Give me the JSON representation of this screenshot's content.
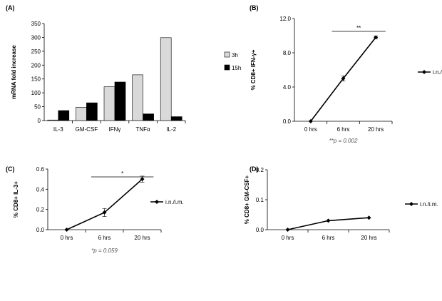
{
  "chart_data": [
    {
      "id": "A",
      "panel_label": "(A)",
      "type": "bar",
      "ylabel": "mRNA fold increase",
      "ylim": [
        0,
        350
      ],
      "yticks": [
        "0",
        "50",
        "100",
        "150",
        "200",
        "250",
        "300",
        "350"
      ],
      "categories": [
        "IL-3",
        "GM-CSF",
        "IFNγ",
        "TNFα",
        "IL-2"
      ],
      "series": [
        {
          "name": "3h",
          "color": "#d9d9d9",
          "values": [
            2,
            48,
            122,
            165,
            299
          ]
        },
        {
          "name": "15h",
          "color": "#000000",
          "values": [
            36,
            64,
            139,
            24,
            14
          ]
        }
      ],
      "legend": "right"
    },
    {
      "id": "B",
      "panel_label": "(B)",
      "type": "line",
      "ylabel": "% CD8+ IFN-γ+",
      "ylim": [
        0,
        12
      ],
      "yticks": [
        "0.0",
        "4.0",
        "8.0",
        "12.0"
      ],
      "categories": [
        "0 hrs",
        "6 hrs",
        "20 hrs"
      ],
      "series": [
        {
          "name": "i.n./i.m.",
          "values": [
            0,
            5.0,
            9.8
          ],
          "errors": [
            0,
            0.3,
            0.15
          ]
        }
      ],
      "significance": {
        "from": 1,
        "to": 2,
        "label": "**"
      },
      "footnote": "**p = 0.002",
      "legend": "right"
    },
    {
      "id": "C",
      "panel_label": "(C)",
      "type": "line",
      "ylabel": "% CD8+ IL-3+",
      "ylim": [
        0,
        0.6
      ],
      "yticks": [
        "0.0",
        "0.2",
        "0.4",
        "0.6"
      ],
      "categories": [
        "0 hrs",
        "6 hrs",
        "20 hrs"
      ],
      "series": [
        {
          "name": "i.n./i.m.",
          "values": [
            0,
            0.17,
            0.5
          ],
          "errors": [
            0,
            0.04,
            0.03
          ]
        }
      ],
      "significance": {
        "from": 1,
        "to": 2,
        "label": "*"
      },
      "footnote": "*p = 0.059",
      "legend": "right"
    },
    {
      "id": "D",
      "panel_label": "(D)",
      "type": "line",
      "ylabel": "% CD8+ GM-CSF+",
      "ylim": [
        0,
        0.2
      ],
      "yticks": [
        "0.0",
        "0.1",
        "0.2"
      ],
      "categories": [
        "0 hrs",
        "6 hrs",
        "20 hrs"
      ],
      "series": [
        {
          "name": "i.n./i.m.",
          "values": [
            0,
            0.03,
            0.04
          ],
          "errors": [
            0,
            0,
            0
          ]
        }
      ],
      "legend": "right"
    }
  ]
}
